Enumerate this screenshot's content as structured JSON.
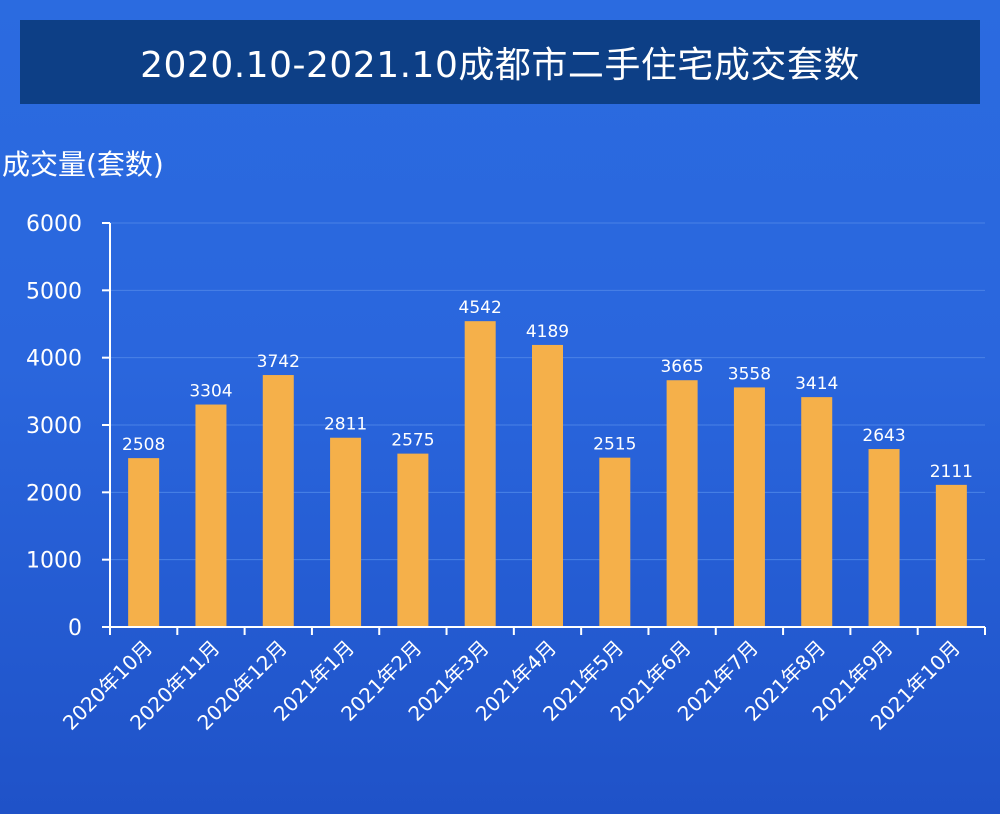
{
  "header": {
    "title": "2020.10-2021.10成都市二手住宅成交套数"
  },
  "chart_data": {
    "type": "bar",
    "title": "2020.10-2021.10成都市二手住宅成交套数",
    "ylabel": "成交量(套数)",
    "xlabel": "",
    "categories": [
      "2020年10月",
      "2020年11月",
      "2020年12月",
      "2021年1月",
      "2021年2月",
      "2021年3月",
      "2021年4月",
      "2021年5月",
      "2021年6月",
      "2021年7月",
      "2021年8月",
      "2021年9月",
      "2021年10月"
    ],
    "values": [
      2508,
      3304,
      3742,
      2811,
      2575,
      4542,
      4189,
      2515,
      3665,
      3558,
      3414,
      2643,
      2111
    ],
    "ylim": [
      0,
      6000
    ],
    "yticks": [
      0,
      1000,
      2000,
      3000,
      4000,
      5000,
      6000
    ],
    "grid": true,
    "data_labels": true,
    "colors": {
      "bar": "#f5b04a",
      "axis": "#ffffff",
      "grid": "#4a82e6"
    }
  }
}
